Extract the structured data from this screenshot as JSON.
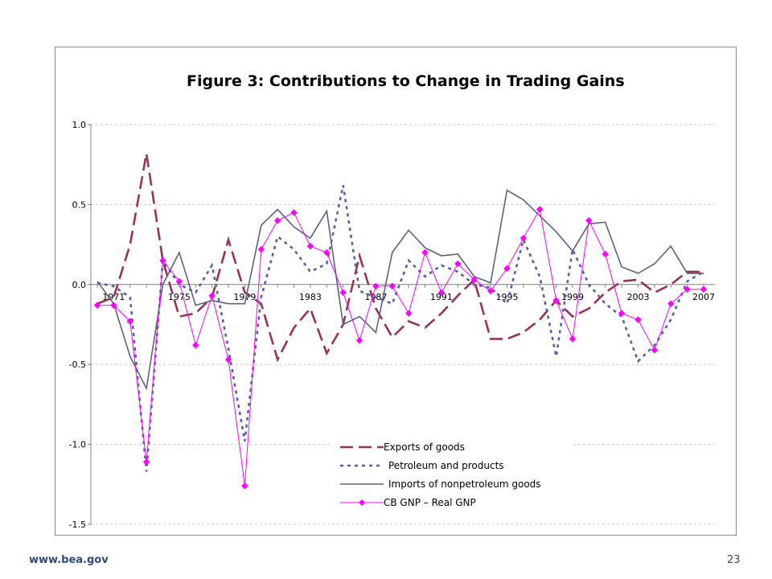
{
  "footer": {
    "url": "www.bea.gov",
    "page_number": "23"
  },
  "chart_data": {
    "type": "line",
    "title": "Figure 3: Contributions to Change in Trading Gains",
    "xlabel": "",
    "ylabel": "",
    "ylim": [
      -1.5,
      1.0
    ],
    "yticks": [
      1.0,
      0.5,
      0.0,
      -0.5,
      -1.0,
      -1.5
    ],
    "ytick_labels": [
      "1.0",
      "0.5",
      "0.0",
      "-0.5",
      "-1.0",
      "-1.5"
    ],
    "xticks": [
      1971,
      1975,
      1979,
      1983,
      1987,
      1991,
      1995,
      1999,
      2003,
      2007
    ],
    "xtick_labels": [
      "1971",
      "1975",
      "1979",
      "1983",
      "1987",
      "1991",
      "1995",
      "1999",
      "2003",
      "2007"
    ],
    "x": [
      1970,
      1971,
      1972,
      1973,
      1974,
      1975,
      1976,
      1977,
      1978,
      1979,
      1980,
      1981,
      1982,
      1983,
      1984,
      1985,
      1986,
      1987,
      1988,
      1989,
      1990,
      1991,
      1992,
      1993,
      1994,
      1995,
      1996,
      1997,
      1998,
      1999,
      2000,
      2001,
      2002,
      2003,
      2004,
      2005,
      2006,
      2007
    ],
    "grid": true,
    "legend_position": "bottom-center",
    "series": [
      {
        "name": "Exports of goods",
        "color": "#953553",
        "style": "long-dash",
        "values": [
          -0.12,
          -0.08,
          0.25,
          0.82,
          0.15,
          -0.2,
          -0.18,
          -0.08,
          0.28,
          -0.05,
          -0.12,
          -0.47,
          -0.27,
          -0.15,
          -0.43,
          -0.25,
          0.18,
          -0.15,
          -0.33,
          -0.23,
          -0.27,
          -0.18,
          -0.07,
          0.03,
          -0.34,
          -0.34,
          -0.3,
          -0.22,
          -0.1,
          -0.2,
          -0.15,
          -0.05,
          0.02,
          0.03,
          -0.05,
          0.0,
          0.08,
          0.08
        ]
      },
      {
        "name": "Petroleum and products",
        "color": "#5a5fa0",
        "style": "dotted",
        "values": [
          0.01,
          -0.01,
          -0.08,
          -1.17,
          0.15,
          0.0,
          -0.05,
          0.12,
          -0.4,
          -0.98,
          -0.08,
          0.3,
          0.22,
          0.08,
          0.13,
          0.62,
          -0.04,
          -0.08,
          -0.12,
          0.15,
          0.05,
          0.12,
          0.08,
          0.0,
          -0.02,
          -0.12,
          0.28,
          0.05,
          -0.45,
          0.22,
          0.0,
          -0.12,
          -0.2,
          -0.48,
          -0.38,
          -0.22,
          0.02,
          0.08
        ]
      },
      {
        "name": "Imports of nonpetroleum goods",
        "color": "#5d6180",
        "style": "solid",
        "values": [
          0.02,
          -0.12,
          -0.45,
          -0.65,
          0.0,
          0.2,
          -0.13,
          -0.1,
          -0.12,
          -0.12,
          0.37,
          0.47,
          0.36,
          0.29,
          0.46,
          -0.25,
          -0.2,
          -0.3,
          0.2,
          0.34,
          0.23,
          0.18,
          0.19,
          0.05,
          0.01,
          0.59,
          0.53,
          0.43,
          0.33,
          0.21,
          0.38,
          0.39,
          0.11,
          0.07,
          0.13,
          0.24,
          0.07,
          0.07
        ]
      },
      {
        "name": "CB GNP – Real GNP",
        "color": "#ff00ff",
        "style": "solid-diamond",
        "values": [
          -0.13,
          -0.13,
          -0.23,
          -1.11,
          0.15,
          0.02,
          -0.38,
          -0.07,
          -0.47,
          -1.26,
          0.22,
          0.4,
          0.45,
          0.24,
          0.2,
          -0.05,
          -0.35,
          -0.01,
          -0.01,
          -0.18,
          0.2,
          -0.05,
          0.13,
          0.03,
          -0.04,
          0.1,
          0.29,
          0.47,
          -0.1,
          -0.34,
          0.4,
          0.19,
          -0.18,
          -0.22,
          -0.41,
          -0.12,
          -0.03,
          -0.03
        ]
      }
    ]
  }
}
